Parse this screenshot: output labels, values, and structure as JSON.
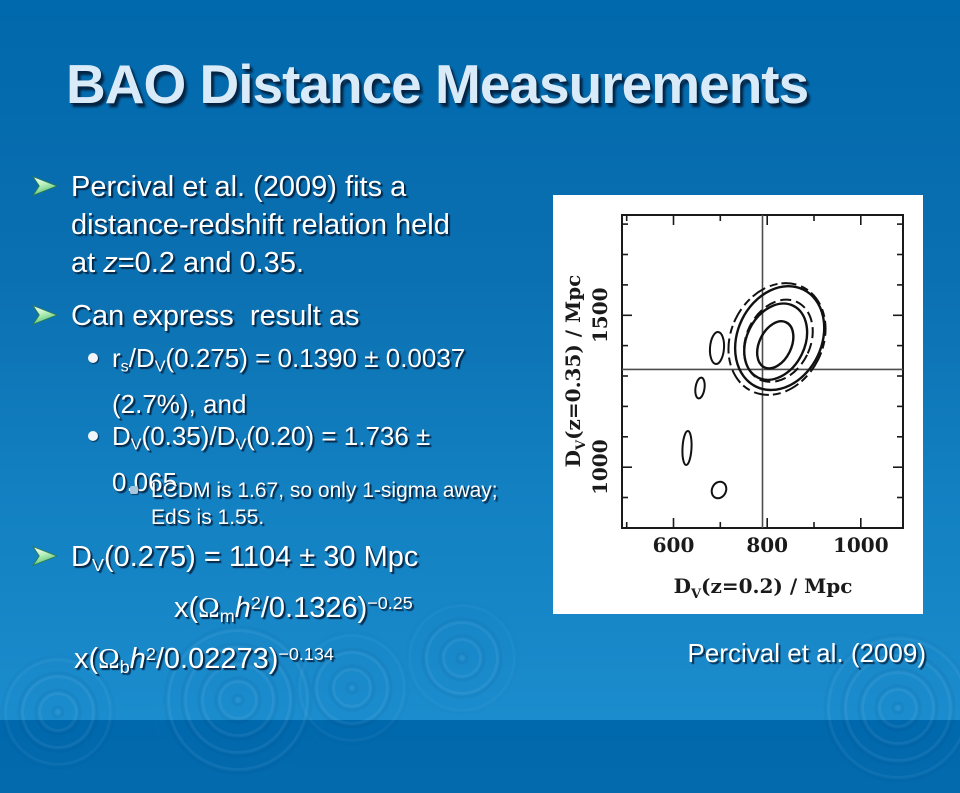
{
  "slide": {
    "title": "BAO Distance Measurements",
    "caption": "Percival et al. (2009)"
  },
  "bullets": {
    "b1": {
      "line1": "Percival et al. (2009) fits a",
      "line2": "distance-redshift relation held",
      "line3": [
        {
          "t": "at "
        },
        {
          "t": "z",
          "s": "it"
        },
        {
          "t": "=0.2 and 0.35."
        }
      ]
    },
    "b2": {
      "line1": "Can express  result as"
    },
    "s1": {
      "line1": [
        {
          "t": "r"
        },
        {
          "t": "s",
          "s": "sb"
        },
        {
          "t": "/D"
        },
        {
          "t": "V",
          "s": "sb"
        },
        {
          "t": "(0.275) = 0.1390 ± 0.0037"
        }
      ],
      "line2": "(2.7%), and"
    },
    "s2": {
      "line1": [
        {
          "t": "D"
        },
        {
          "t": "V",
          "s": "sb"
        },
        {
          "t": "(0.35)/D"
        },
        {
          "t": "V",
          "s": "sb"
        },
        {
          "t": "(0.20) = 1.736 ±"
        }
      ],
      "line2": "0.065"
    },
    "ss1": {
      "line1": "LCDM is 1.67, so only 1-sigma away;",
      "line2": "EdS is 1.55."
    },
    "b3": {
      "line1": [
        {
          "t": "D"
        },
        {
          "t": "V",
          "s": "sb"
        },
        {
          "t": "(0.275) = 1104 ± 30 Mpc"
        }
      ],
      "line2": [
        {
          "t": "x("
        },
        {
          "t": "Ω",
          "s": "om"
        },
        {
          "t": "m",
          "s": "sb"
        },
        {
          "t": "h",
          "s": "it"
        },
        {
          "t": "2",
          "s": "sp"
        },
        {
          "t": "/0.1326)"
        },
        {
          "t": "−0.25",
          "s": "sp"
        }
      ],
      "line3": [
        {
          "t": "x("
        },
        {
          "t": "Ω",
          "s": "om"
        },
        {
          "t": "b",
          "s": "sb"
        },
        {
          "t": "h",
          "s": "it"
        },
        {
          "t": "2",
          "s": "sp"
        },
        {
          "t": "/0.02273)"
        },
        {
          "t": "−0.134",
          "s": "sp"
        }
      ]
    }
  },
  "plot": {
    "xticks": [
      "600",
      "800",
      "1000"
    ],
    "yticks": [
      "1000",
      "1500"
    ],
    "xlabel": {
      "pre": "D",
      "sub": "V",
      "post": "(z=0.2) / Mpc"
    },
    "ylabel": {
      "pre": "D",
      "sub": "V",
      "post": "(z=0.35) / Mpc"
    }
  },
  "chart_data": {
    "type": "contour",
    "title": "",
    "xlabel": "D_V(z=0.2) / Mpc",
    "ylabel": "D_V(z=0.35) / Mpc",
    "xlim": [
      490,
      1090
    ],
    "ylim": [
      800,
      1830
    ],
    "x_ticks_labeled": [
      600,
      800,
      1000
    ],
    "y_ticks_labeled": [
      1000,
      1500
    ],
    "tick_spacing_minor": 100,
    "grid": "off",
    "legend": "none",
    "crosshair": {
      "x": 790,
      "y": 1320
    },
    "main_contours": {
      "center": {
        "x": 820,
        "y": 1425
      },
      "levels": 3,
      "style": "nested irregular solid and dashed likelihood contours, tilted ellipses"
    },
    "minor_blobs": [
      {
        "x": 693,
        "y": 1392
      },
      {
        "x": 657,
        "y": 1261
      },
      {
        "x": 629,
        "y": 1063
      },
      {
        "x": 697,
        "y": 925
      }
    ]
  }
}
